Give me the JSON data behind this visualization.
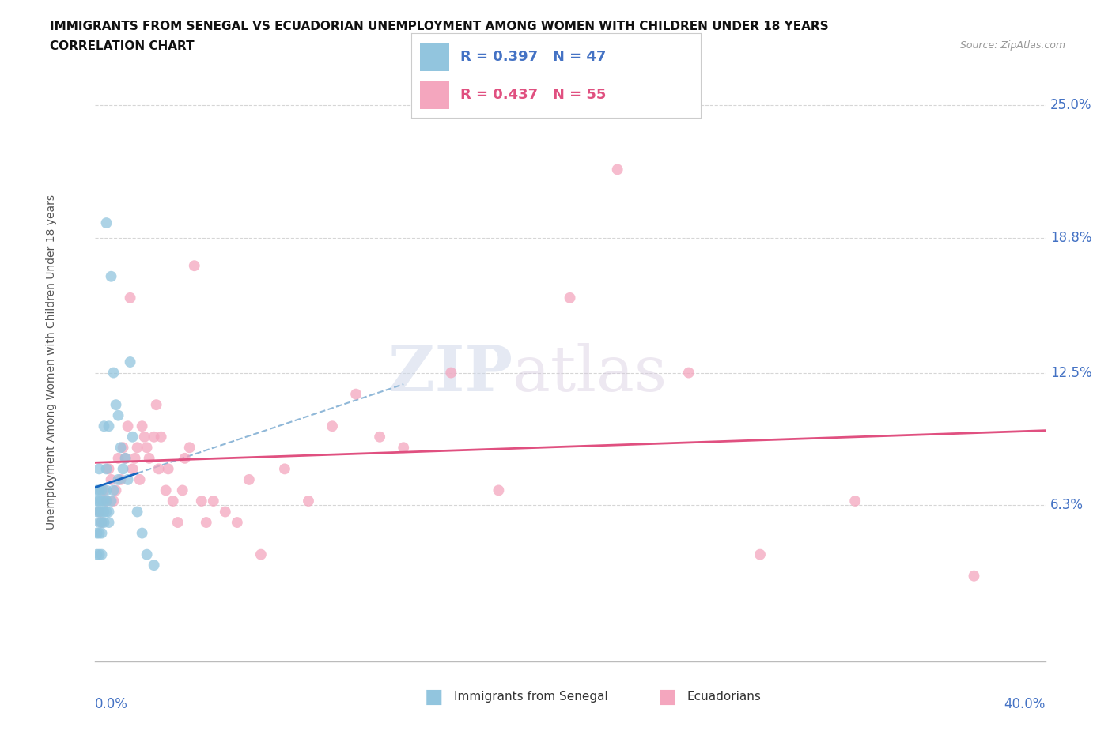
{
  "title": "IMMIGRANTS FROM SENEGAL VS ECUADORIAN UNEMPLOYMENT AMONG WOMEN WITH CHILDREN UNDER 18 YEARS",
  "subtitle": "CORRELATION CHART",
  "source": "Source: ZipAtlas.com",
  "ylabel_ticks": [
    "25.0%",
    "18.8%",
    "12.5%",
    "6.3%"
  ],
  "ylabel_values": [
    0.25,
    0.188,
    0.125,
    0.063
  ],
  "xmin": 0.0,
  "xmax": 0.4,
  "ymin": -0.01,
  "ymax": 0.27,
  "legend_blue": {
    "R": "0.397",
    "N": "47",
    "label": "Immigrants from Senegal"
  },
  "legend_pink": {
    "R": "0.437",
    "N": "55",
    "label": "Ecuadorians"
  },
  "blue_color": "#92c5de",
  "pink_color": "#f4a6be",
  "blue_line_color": "#1565c0",
  "blue_dash_color": "#90b8d8",
  "pink_line_color": "#e05080",
  "blue_scatter_x": [
    0.001,
    0.001,
    0.001,
    0.001,
    0.001,
    0.002,
    0.002,
    0.002,
    0.002,
    0.002,
    0.002,
    0.002,
    0.003,
    0.003,
    0.003,
    0.003,
    0.003,
    0.003,
    0.004,
    0.004,
    0.004,
    0.004,
    0.005,
    0.005,
    0.005,
    0.005,
    0.005,
    0.006,
    0.006,
    0.006,
    0.007,
    0.007,
    0.008,
    0.008,
    0.009,
    0.01,
    0.01,
    0.011,
    0.012,
    0.013,
    0.014,
    0.015,
    0.016,
    0.018,
    0.02,
    0.022,
    0.025
  ],
  "blue_scatter_y": [
    0.04,
    0.05,
    0.06,
    0.065,
    0.07,
    0.04,
    0.05,
    0.055,
    0.06,
    0.065,
    0.07,
    0.08,
    0.04,
    0.05,
    0.055,
    0.06,
    0.065,
    0.07,
    0.055,
    0.06,
    0.065,
    0.1,
    0.06,
    0.065,
    0.07,
    0.08,
    0.195,
    0.055,
    0.06,
    0.1,
    0.065,
    0.17,
    0.07,
    0.125,
    0.11,
    0.075,
    0.105,
    0.09,
    0.08,
    0.085,
    0.075,
    0.13,
    0.095,
    0.06,
    0.05,
    0.04,
    0.035
  ],
  "pink_scatter_x": [
    0.002,
    0.003,
    0.004,
    0.005,
    0.006,
    0.007,
    0.008,
    0.009,
    0.01,
    0.011,
    0.012,
    0.013,
    0.014,
    0.015,
    0.016,
    0.017,
    0.018,
    0.019,
    0.02,
    0.021,
    0.022,
    0.023,
    0.025,
    0.026,
    0.027,
    0.028,
    0.03,
    0.031,
    0.033,
    0.035,
    0.037,
    0.038,
    0.04,
    0.042,
    0.045,
    0.047,
    0.05,
    0.055,
    0.06,
    0.065,
    0.07,
    0.08,
    0.09,
    0.1,
    0.11,
    0.12,
    0.13,
    0.15,
    0.17,
    0.2,
    0.22,
    0.25,
    0.28,
    0.32,
    0.37
  ],
  "pink_scatter_y": [
    0.06,
    0.055,
    0.07,
    0.065,
    0.08,
    0.075,
    0.065,
    0.07,
    0.085,
    0.075,
    0.09,
    0.085,
    0.1,
    0.16,
    0.08,
    0.085,
    0.09,
    0.075,
    0.1,
    0.095,
    0.09,
    0.085,
    0.095,
    0.11,
    0.08,
    0.095,
    0.07,
    0.08,
    0.065,
    0.055,
    0.07,
    0.085,
    0.09,
    0.175,
    0.065,
    0.055,
    0.065,
    0.06,
    0.055,
    0.075,
    0.04,
    0.08,
    0.065,
    0.1,
    0.115,
    0.095,
    0.09,
    0.125,
    0.07,
    0.16,
    0.22,
    0.125,
    0.04,
    0.065,
    0.03
  ],
  "watermark_zip": "ZIP",
  "watermark_atlas": "atlas",
  "background_color": "#ffffff",
  "grid_color": "#cccccc"
}
